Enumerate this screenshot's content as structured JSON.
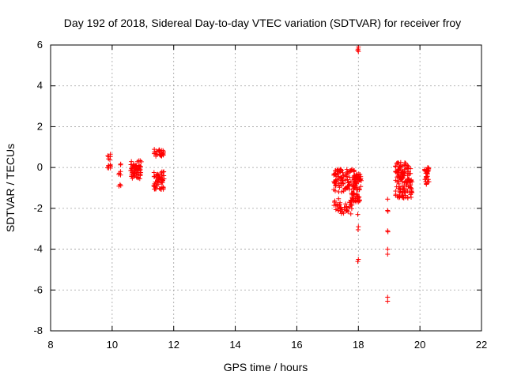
{
  "chart_data": {
    "type": "scatter",
    "title": "Day 192 of 2018, Sidereal Day-to-day VTEC variation (SDTVAR) for receiver froy",
    "xlabel": "GPS time / hours",
    "ylabel": "SDTVAR / TECUs",
    "xlim": [
      8,
      22
    ],
    "ylim": [
      -8,
      6
    ],
    "xticks": [
      8,
      10,
      12,
      14,
      16,
      18,
      20,
      22
    ],
    "yticks": [
      -8,
      -6,
      -4,
      -2,
      0,
      2,
      4,
      6
    ],
    "grid": true,
    "marker": "+",
    "color": "#ff0000",
    "clusters": [
      {
        "x": [
          9.85,
          9.95
        ],
        "y": [
          -0.05,
          0.7
        ],
        "n": 14
      },
      {
        "x": [
          10.18,
          10.28
        ],
        "y": [
          -0.4,
          0.2
        ],
        "n": 6
      },
      {
        "x": [
          10.2,
          10.28
        ],
        "y": [
          -0.95,
          -0.75
        ],
        "n": 3
      },
      {
        "x": [
          10.6,
          10.95
        ],
        "y": [
          -0.55,
          0.35
        ],
        "n": 70
      },
      {
        "x": [
          11.35,
          11.7
        ],
        "y": [
          0.55,
          0.9
        ],
        "n": 30
      },
      {
        "x": [
          11.35,
          11.7
        ],
        "y": [
          -1.1,
          -0.2
        ],
        "n": 55
      },
      {
        "x": [
          17.2,
          17.8
        ],
        "y": [
          -2.3,
          -1.5
        ],
        "n": 45
      },
      {
        "x": [
          17.2,
          17.9
        ],
        "y": [
          -1.2,
          -0.05
        ],
        "n": 110
      },
      {
        "x": [
          17.75,
          18.05
        ],
        "y": [
          -1.7,
          -1.2
        ],
        "n": 35
      },
      {
        "x": [
          17.85,
          18.1
        ],
        "y": [
          -1.1,
          -0.3
        ],
        "n": 40
      },
      {
        "x": [
          19.2,
          19.7
        ],
        "y": [
          -0.6,
          0.25
        ],
        "n": 70
      },
      {
        "x": [
          19.2,
          19.75
        ],
        "y": [
          -1.5,
          -0.6
        ],
        "n": 75
      },
      {
        "x": [
          20.15,
          20.3
        ],
        "y": [
          -0.85,
          0.0
        ],
        "n": 30
      }
    ],
    "points": [
      [
        17.98,
        5.75
      ],
      [
        17.99,
        5.8
      ],
      [
        18.0,
        5.68
      ],
      [
        18.0,
        5.9
      ],
      [
        17.98,
        -2.3
      ],
      [
        18.0,
        -2.9
      ],
      [
        17.99,
        -3.05
      ],
      [
        18.0,
        -4.5
      ],
      [
        17.98,
        -4.6
      ],
      [
        18.95,
        -1.55
      ],
      [
        18.95,
        -2.1
      ],
      [
        18.96,
        -2.15
      ],
      [
        18.95,
        -3.1
      ],
      [
        18.96,
        -3.15
      ],
      [
        18.95,
        -4.0
      ],
      [
        18.95,
        -4.25
      ],
      [
        18.95,
        -6.35
      ],
      [
        18.95,
        -6.55
      ]
    ]
  }
}
